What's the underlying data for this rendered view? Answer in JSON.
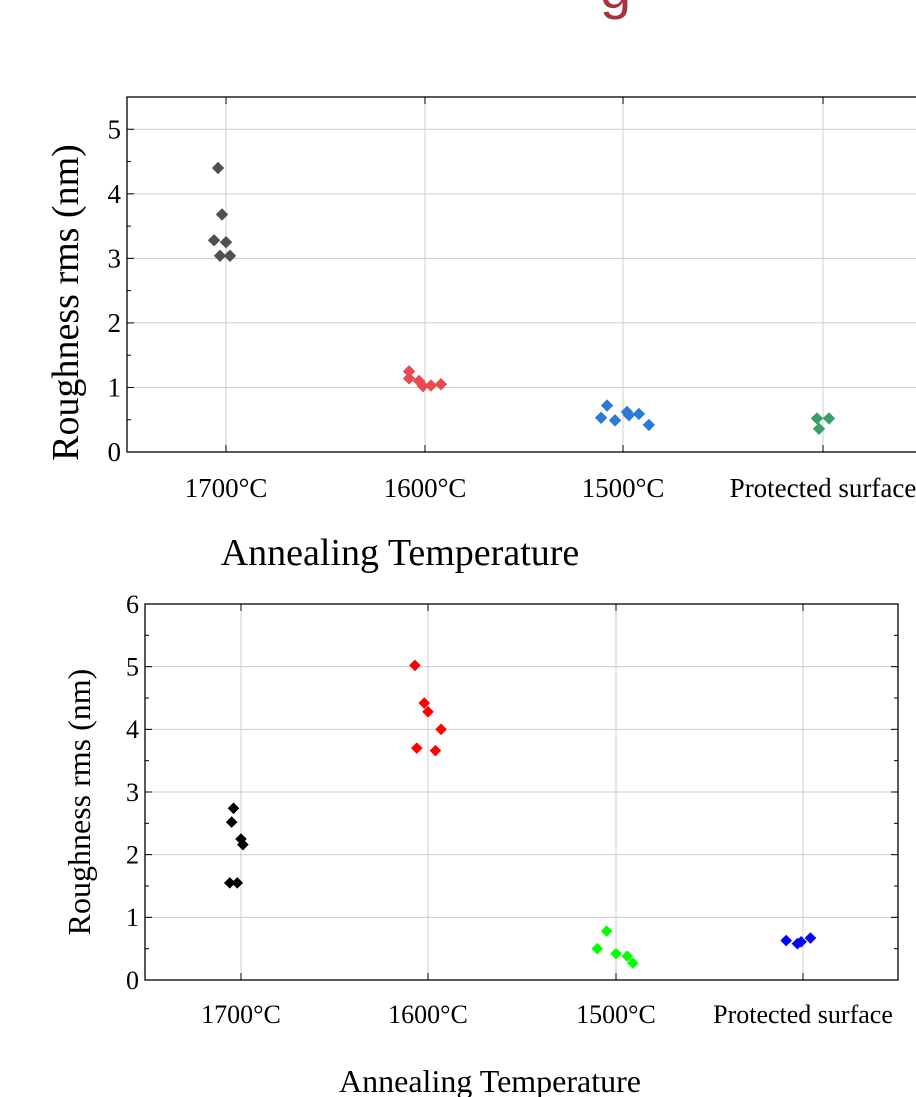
{
  "top_text_fragment": "g",
  "chart_data": [
    {
      "type": "scatter",
      "xlabel": "Annealing Temperature",
      "ylabel": "Roughness rms (nm)",
      "categories": [
        "1700°C",
        "1600°C",
        "1500°C",
        "Protected surface"
      ],
      "ylim": [
        0,
        5.5
      ],
      "yticks": [
        0,
        1,
        2,
        3,
        4,
        5
      ],
      "grid": true,
      "marker": "diamond",
      "series": [
        {
          "category": "1700°C",
          "color": "#505050",
          "points": [
            [
              -0.04,
              4.4
            ],
            [
              -0.02,
              3.68
            ],
            [
              -0.06,
              3.28
            ],
            [
              0.0,
              3.25
            ],
            [
              -0.03,
              3.04
            ],
            [
              0.02,
              3.04
            ]
          ]
        },
        {
          "category": "1600°C",
          "color": "#e84a50",
          "points": [
            [
              -0.08,
              1.25
            ],
            [
              -0.08,
              1.14
            ],
            [
              -0.03,
              1.1
            ],
            [
              -0.01,
              1.02
            ],
            [
              0.03,
              1.03
            ],
            [
              0.08,
              1.05
            ]
          ]
        },
        {
          "category": "1500°C",
          "color": "#2a7ad6",
          "points": [
            [
              -0.08,
              0.72
            ],
            [
              -0.11,
              0.53
            ],
            [
              -0.04,
              0.49
            ],
            [
              0.02,
              0.62
            ],
            [
              0.03,
              0.57
            ],
            [
              0.08,
              0.59
            ],
            [
              0.13,
              0.42
            ]
          ]
        },
        {
          "category": "Protected surface",
          "color": "#3a9e68",
          "points": [
            [
              -0.03,
              0.52
            ],
            [
              0.03,
              0.52
            ],
            [
              -0.02,
              0.36
            ]
          ]
        }
      ]
    },
    {
      "type": "scatter",
      "xlabel": "Annealing Temperature",
      "ylabel": "Roughness rms (nm)",
      "categories": [
        "1700°C",
        "1600°C",
        "1500°C",
        "Protected surface"
      ],
      "ylim": [
        0,
        6
      ],
      "yticks": [
        0,
        1,
        2,
        3,
        4,
        5,
        6
      ],
      "grid": true,
      "marker": "diamond",
      "series": [
        {
          "category": "1700°C",
          "color": "#000000",
          "points": [
            [
              -0.04,
              2.74
            ],
            [
              -0.05,
              2.52
            ],
            [
              0.0,
              2.25
            ],
            [
              0.01,
              2.16
            ],
            [
              -0.06,
              1.55
            ],
            [
              -0.02,
              1.55
            ]
          ]
        },
        {
          "category": "1600°C",
          "color": "#ff0000",
          "points": [
            [
              -0.07,
              5.02
            ],
            [
              -0.02,
              4.42
            ],
            [
              0.0,
              4.28
            ],
            [
              0.07,
              4.0
            ],
            [
              -0.06,
              3.7
            ],
            [
              0.04,
              3.66
            ]
          ]
        },
        {
          "category": "1500°C",
          "color": "#00ff00",
          "points": [
            [
              -0.05,
              0.78
            ],
            [
              -0.1,
              0.5
            ],
            [
              0.0,
              0.42
            ],
            [
              0.06,
              0.38
            ],
            [
              0.09,
              0.27
            ]
          ]
        },
        {
          "category": "Protected surface",
          "color": "#0000ff",
          "points": [
            [
              -0.09,
              0.63
            ],
            [
              -0.03,
              0.58
            ],
            [
              -0.01,
              0.61
            ],
            [
              0.04,
              0.67
            ]
          ]
        }
      ]
    }
  ]
}
